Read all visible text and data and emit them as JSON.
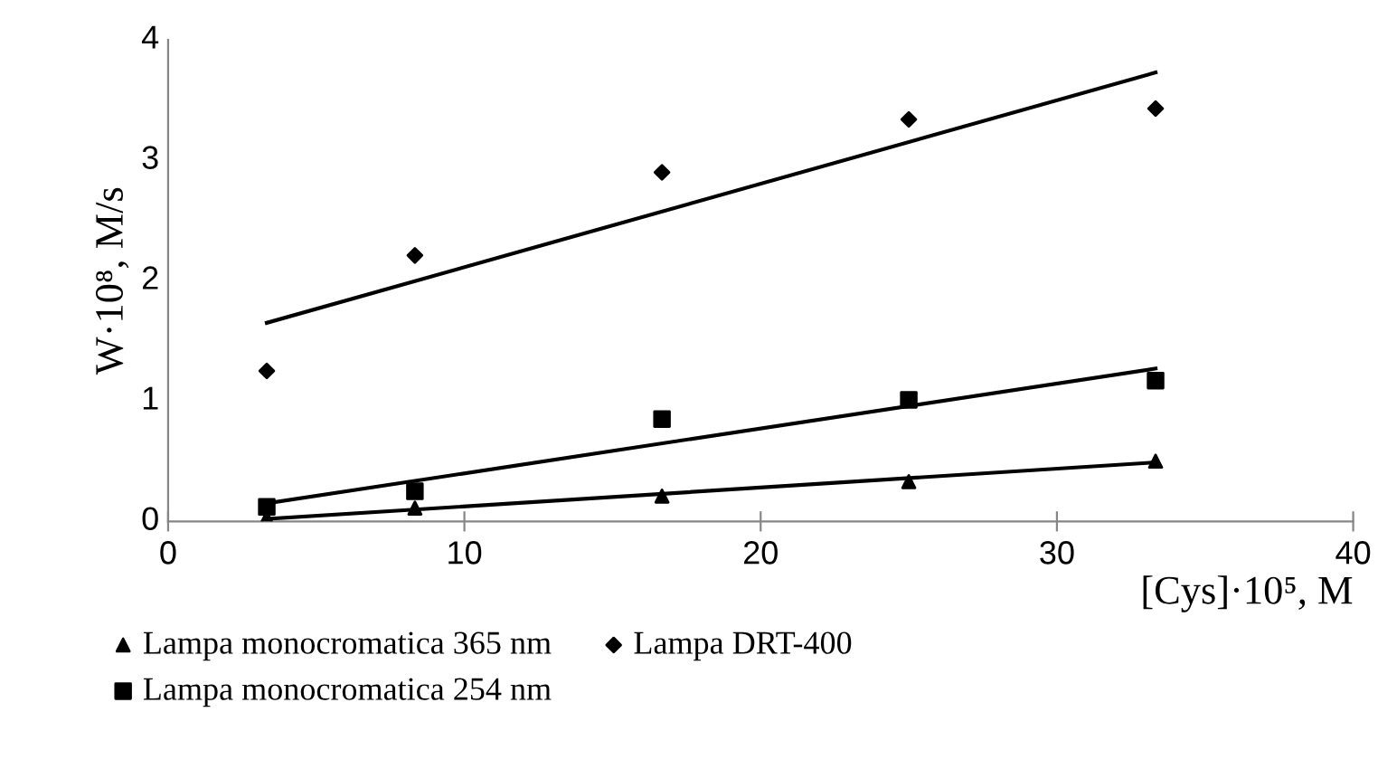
{
  "chart_data": {
    "type": "scatter",
    "xlabel": "[Cys]·10⁵, M",
    "ylabel": "W·10⁸, M/s",
    "xlim": [
      0,
      40
    ],
    "xticks": [
      0,
      10,
      20,
      30,
      40
    ],
    "ylim": [
      0,
      4
    ],
    "yticks": [
      0,
      1,
      2,
      3,
      4
    ],
    "grid": false,
    "legend": "bottom",
    "series": [
      {
        "name": "Lampa monocromatica 365 nm",
        "color": "#000000",
        "marker": "triangle",
        "x": [
          3.33,
          8.33,
          16.67,
          25,
          33.33
        ],
        "values": [
          0.03,
          0.11,
          0.21,
          0.33,
          0.5
        ]
      },
      {
        "name": "Lampa monocromatica 254 nm",
        "color": "#000000",
        "marker": "square",
        "x": [
          3.33,
          8.33,
          16.67,
          25,
          33.33
        ],
        "values": [
          0.12,
          0.25,
          0.85,
          1.01,
          1.17
        ]
      },
      {
        "name": "Lampa DRT-400",
        "color": "#000000",
        "marker": "diamond",
        "x": [
          3.33,
          8.33,
          16.67,
          25,
          33.33
        ],
        "values": [
          1.25,
          2.21,
          2.9,
          3.34,
          3.43
        ]
      },
      {
        "type": "line",
        "color": "#000000",
        "marker": "none",
        "x": [
          3.33,
          33.33
        ],
        "values": [
          0.02,
          0.49
        ]
      },
      {
        "type": "line",
        "color": "#000000",
        "marker": "none",
        "x": [
          3.33,
          33.33
        ],
        "values": [
          0.15,
          1.27
        ]
      },
      {
        "type": "line",
        "color": "#000000",
        "marker": "none",
        "x": [
          3.33,
          33.33
        ],
        "values": [
          1.65,
          3.73
        ]
      }
    ]
  }
}
